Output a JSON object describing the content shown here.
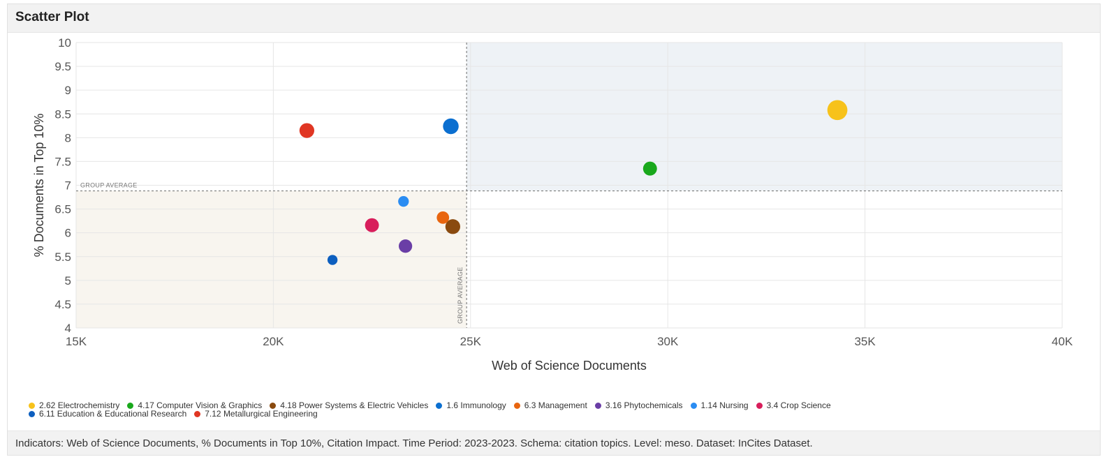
{
  "panel": {
    "title": "Scatter Plot",
    "footer": "Indicators:  Web of Science Documents, % Documents in Top 10%, Citation Impact.  Time Period:  2023-2023.  Schema:  citation topics.  Level:  meso.  Dataset:  InCites Dataset."
  },
  "chart_data": {
    "type": "scatter",
    "xlabel": "Web of Science Documents",
    "ylabel": "% Documents in Top 10%",
    "xlim": [
      15000,
      40000
    ],
    "ylim": [
      4,
      10
    ],
    "x_ticks": [
      15000,
      20000,
      25000,
      30000,
      35000,
      40000
    ],
    "x_tick_labels": [
      "15K",
      "20K",
      "25K",
      "30K",
      "35K",
      "40K"
    ],
    "y_ticks": [
      4,
      4.5,
      5,
      5.5,
      6,
      6.5,
      7,
      7.5,
      8,
      8.5,
      9,
      9.5,
      10
    ],
    "y_tick_labels": [
      "4",
      "4.5",
      "5",
      "5.5",
      "6",
      "6.5",
      "7",
      "7.5",
      "8",
      "8.5",
      "9",
      "9.5",
      "10"
    ],
    "grid": true,
    "reference_lines": {
      "x_group_average": 24900,
      "y_group_average": 6.88,
      "x_label": "GROUP AVERAGE",
      "y_label": "GROUP AVERAGE"
    },
    "quadrant_colors": {
      "upper_right": "#eef2f6",
      "lower_left": "#f8f5ef"
    },
    "size_encodes": "Citation Impact",
    "legend_placement": "bottom",
    "series": [
      {
        "name": "2.62 Electrochemistry",
        "x": 34300,
        "y": 8.58,
        "size": 3.0,
        "color": "#f7c21b"
      },
      {
        "name": "4.17 Computer Vision & Graphics",
        "x": 29550,
        "y": 7.35,
        "size": 1.4,
        "color": "#19a81c"
      },
      {
        "name": "4.18 Power Systems & Electric Vehicles",
        "x": 24550,
        "y": 6.13,
        "size": 1.6,
        "color": "#8a4a0f"
      },
      {
        "name": "1.6 Immunology",
        "x": 24500,
        "y": 8.24,
        "size": 1.8,
        "color": "#0b6fd0"
      },
      {
        "name": "6.3 Management",
        "x": 24300,
        "y": 6.32,
        "size": 1.1,
        "color": "#e8650f"
      },
      {
        "name": "3.16 Phytochemicals",
        "x": 23350,
        "y": 5.72,
        "size": 1.3,
        "color": "#6a3ea6"
      },
      {
        "name": "1.14 Nursing",
        "x": 23300,
        "y": 6.66,
        "size": 0.8,
        "color": "#2a8cf2"
      },
      {
        "name": "3.4 Crop Science",
        "x": 22500,
        "y": 6.16,
        "size": 1.4,
        "color": "#d81e5b"
      },
      {
        "name": "6.11 Education & Educational Research",
        "x": 21500,
        "y": 5.43,
        "size": 0.7,
        "color": "#0d5fbf"
      },
      {
        "name": "7.12 Metallurgical Engineering",
        "x": 20850,
        "y": 8.15,
        "size": 1.6,
        "color": "#e03623"
      }
    ]
  }
}
